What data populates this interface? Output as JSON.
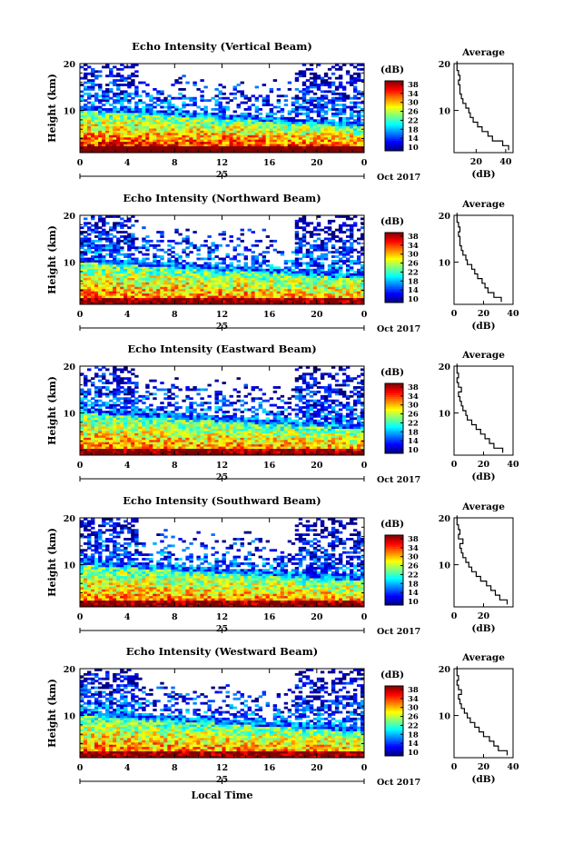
{
  "figure": {
    "xlabel": "Local Time",
    "month_label": "Oct 2017",
    "date_label": "25",
    "ylabel": "Height (km)",
    "avg_title": "Average",
    "avg_xlabel": "(dB)",
    "cbar_label": "(dB)"
  },
  "chart_data": [
    {
      "type": "heatmap",
      "title": "Echo Intensity (Vertical Beam)",
      "xlabel": "Local Time",
      "ylabel": "Height (km)",
      "x_ticks": [
        "0",
        "4",
        "8",
        "12",
        "16",
        "20",
        "0"
      ],
      "y_ticks": [
        "20",
        "10"
      ],
      "xlim": [
        0,
        24
      ],
      "ylim": [
        1,
        20
      ],
      "colorbar": {
        "label": "(dB)",
        "ticks": [
          "38",
          "34",
          "30",
          "26",
          "22",
          "18",
          "14",
          "10"
        ],
        "range": [
          10,
          38
        ]
      },
      "profile": {
        "title": "Average",
        "xlabel": "(dB)",
        "x_ticks": [
          "20",
          "40"
        ],
        "xlim": [
          5,
          45
        ],
        "y_ticks": [
          "20",
          "10"
        ],
        "height_km": [
          2,
          3,
          4,
          5,
          6,
          7,
          8,
          9,
          10,
          11,
          12,
          13,
          14,
          15,
          16,
          17,
          18,
          19,
          20
        ],
        "values_db": [
          42,
          38,
          31,
          28,
          24,
          21,
          18,
          16,
          15,
          13,
          11,
          10,
          9,
          9,
          8,
          9,
          8,
          7,
          7
        ]
      }
    },
    {
      "type": "heatmap",
      "title": "Echo Intensity (Northward Beam)",
      "xlabel": "Local Time",
      "ylabel": "Height (km)",
      "x_ticks": [
        "0",
        "4",
        "8",
        "12",
        "16",
        "20",
        "0"
      ],
      "y_ticks": [
        "20",
        "10"
      ],
      "xlim": [
        0,
        24
      ],
      "ylim": [
        1,
        20
      ],
      "colorbar": {
        "label": "(dB)",
        "ticks": [
          "38",
          "34",
          "30",
          "26",
          "22",
          "18",
          "14",
          "10"
        ],
        "range": [
          10,
          38
        ]
      },
      "profile": {
        "title": "Average",
        "xlabel": "(dB)",
        "x_ticks": [
          "0",
          "20",
          "40"
        ],
        "xlim": [
          0,
          40
        ],
        "y_ticks": [
          "20",
          "10"
        ],
        "height_km": [
          2,
          3,
          4,
          5,
          6,
          7,
          8,
          9,
          10,
          11,
          12,
          13,
          14,
          15,
          16,
          17,
          18,
          19,
          20
        ],
        "values_db": [
          32,
          27,
          23,
          21,
          19,
          16,
          14,
          12,
          9,
          8,
          6,
          5,
          4,
          4,
          3,
          4,
          3,
          2,
          2
        ]
      }
    },
    {
      "type": "heatmap",
      "title": "Echo Intensity (Eastward Beam)",
      "xlabel": "Local Time",
      "ylabel": "Height (km)",
      "x_ticks": [
        "0",
        "4",
        "8",
        "12",
        "16",
        "20",
        "0"
      ],
      "y_ticks": [
        "20",
        "10"
      ],
      "xlim": [
        0,
        24
      ],
      "ylim": [
        1,
        20
      ],
      "colorbar": {
        "label": "(dB)",
        "ticks": [
          "38",
          "34",
          "30",
          "26",
          "22",
          "18",
          "14",
          "10"
        ],
        "range": [
          10,
          38
        ]
      },
      "profile": {
        "title": "Average",
        "xlabel": "(dB)",
        "x_ticks": [
          "0",
          "20",
          "40"
        ],
        "xlim": [
          0,
          40
        ],
        "y_ticks": [
          "20",
          "10"
        ],
        "height_km": [
          2,
          3,
          4,
          5,
          6,
          7,
          8,
          9,
          10,
          11,
          12,
          13,
          14,
          15,
          16,
          17,
          18,
          19,
          20
        ],
        "values_db": [
          33,
          27,
          24,
          21,
          18,
          15,
          12,
          9,
          8,
          6,
          5,
          4,
          3,
          5,
          3,
          2,
          3,
          2,
          2
        ]
      }
    },
    {
      "type": "heatmap",
      "title": "Echo Intensity (Southward Beam)",
      "xlabel": "Local Time",
      "ylabel": "Height (km)",
      "x_ticks": [
        "0",
        "4",
        "8",
        "12",
        "16",
        "20",
        "0"
      ],
      "y_ticks": [
        "20",
        "10"
      ],
      "xlim": [
        0,
        24
      ],
      "ylim": [
        1,
        20
      ],
      "colorbar": {
        "label": "(dB)",
        "ticks": [
          "38",
          "34",
          "30",
          "26",
          "22",
          "18",
          "14",
          "10"
        ],
        "range": [
          10,
          38
        ]
      },
      "profile": {
        "title": "Average",
        "xlabel": "(dB)",
        "x_ticks": [
          "0",
          "20"
        ],
        "xlim": [
          0,
          40
        ],
        "y_ticks": [
          "20",
          "10"
        ],
        "height_km": [
          2,
          3,
          4,
          5,
          6,
          7,
          8,
          9,
          10,
          11,
          12,
          13,
          14,
          15,
          16,
          17,
          18,
          19,
          20
        ],
        "values_db": [
          36,
          31,
          28,
          25,
          22,
          18,
          15,
          12,
          10,
          8,
          6,
          5,
          4,
          6,
          3,
          4,
          3,
          2,
          2
        ]
      }
    },
    {
      "type": "heatmap",
      "title": "Echo Intensity (Westward Beam)",
      "xlabel": "Local Time",
      "ylabel": "Height (km)",
      "x_ticks": [
        "0",
        "4",
        "8",
        "12",
        "16",
        "20",
        "0"
      ],
      "y_ticks": [
        "20",
        "10"
      ],
      "xlim": [
        0,
        24
      ],
      "ylim": [
        1,
        20
      ],
      "colorbar": {
        "label": "(dB)",
        "ticks": [
          "38",
          "34",
          "30",
          "26",
          "22",
          "18",
          "14",
          "10"
        ],
        "range": [
          10,
          38
        ]
      },
      "profile": {
        "title": "Average",
        "xlabel": "(dB)",
        "x_ticks": [
          "0",
          "20",
          "40"
        ],
        "xlim": [
          0,
          40
        ],
        "y_ticks": [
          "20",
          "10"
        ],
        "height_km": [
          2,
          3,
          4,
          5,
          6,
          7,
          8,
          9,
          10,
          11,
          12,
          13,
          14,
          15,
          16,
          17,
          18,
          19,
          20
        ],
        "values_db": [
          36,
          30,
          27,
          24,
          20,
          17,
          14,
          11,
          9,
          7,
          5,
          4,
          3,
          5,
          3,
          2,
          3,
          2,
          2
        ]
      }
    }
  ]
}
